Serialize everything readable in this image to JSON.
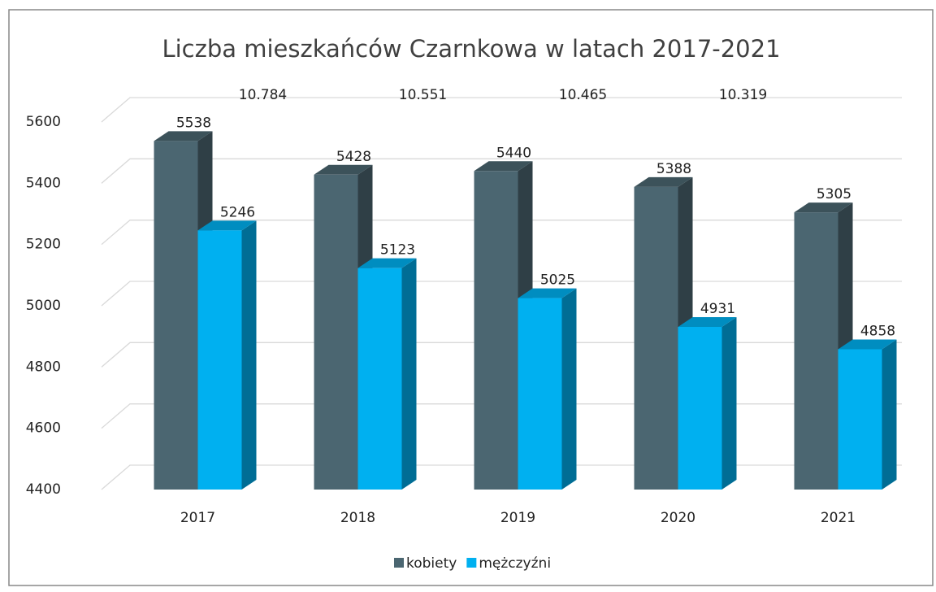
{
  "chart_data": {
    "type": "bar3d",
    "title": "Liczba mieszkańców Czarnkowa w latach 2017-2021",
    "categories": [
      "2017",
      "2018",
      "2019",
      "2020",
      "2021"
    ],
    "series": [
      {
        "name": "kobiety",
        "color": "#4b6671",
        "values": [
          5538,
          5428,
          5440,
          5388,
          5305
        ]
      },
      {
        "name": "mężczyźni",
        "color": "#00b0f0",
        "values": [
          5246,
          5123,
          5025,
          4931,
          4858
        ]
      }
    ],
    "annotations": [
      "10.784",
      "10.551",
      "10.465",
      "10.319"
    ],
    "ylim": [
      4400,
      5600
    ],
    "yticks": [
      4400,
      4600,
      4800,
      5000,
      5200,
      5400,
      5600
    ],
    "grid": true,
    "legend": "bottom"
  }
}
